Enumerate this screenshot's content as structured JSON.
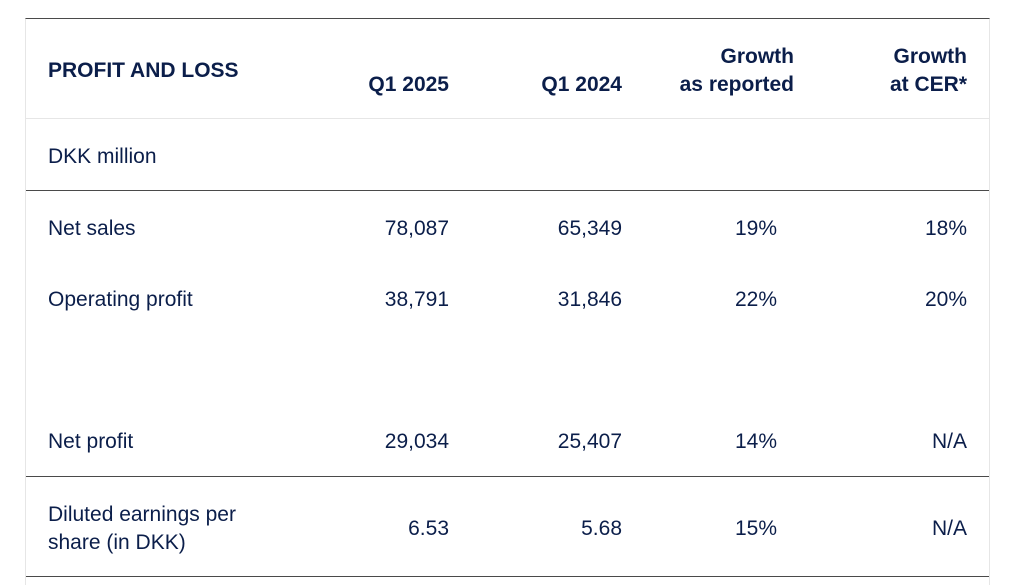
{
  "table": {
    "title": "PROFIT AND LOSS",
    "columns": [
      "Q1 2025",
      "Q1 2024",
      "Growth\nas reported",
      "Growth\nat CER*"
    ],
    "column_lines": {
      "growth_reported": [
        "Growth",
        "as reported"
      ],
      "growth_cer": [
        "Growth",
        "at CER*"
      ]
    },
    "unit": "DKK million",
    "rows": [
      {
        "label": "Net sales",
        "q1_2025": "78,087",
        "q1_2024": "65,349",
        "growth_reported": "19%",
        "growth_cer": "18%"
      },
      {
        "label": "Operating profit",
        "q1_2025": "38,791",
        "q1_2024": "31,846",
        "growth_reported": "22%",
        "growth_cer": "20%"
      },
      {
        "label": "Net profit",
        "q1_2025": "29,034",
        "q1_2024": "25,407",
        "growth_reported": "14%",
        "growth_cer": "N/A"
      }
    ],
    "eps": {
      "label_lines": [
        "Diluted earnings per",
        "share (in DKK)"
      ],
      "q1_2025": "6.53",
      "q1_2024": "5.68",
      "growth_reported": "15%",
      "growth_cer": "N/A"
    }
  }
}
